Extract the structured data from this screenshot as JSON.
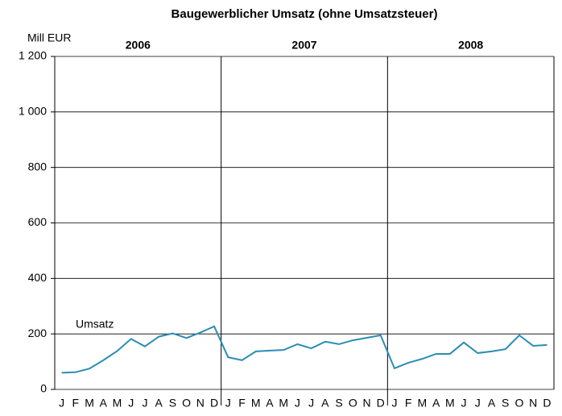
{
  "chart_data": {
    "type": "line",
    "title": "Baugewerblicher Umsatz (ohne Umsatzsteuer)",
    "y_label": "Mill EUR",
    "annotation": "Umsatz",
    "years": [
      "2006",
      "2007",
      "2008"
    ],
    "categories": [
      "J",
      "F",
      "M",
      "A",
      "M",
      "J",
      "J",
      "A",
      "S",
      "O",
      "N",
      "D",
      "J",
      "F",
      "M",
      "A",
      "M",
      "J",
      "J",
      "A",
      "S",
      "O",
      "N",
      "D",
      "J",
      "F",
      "M",
      "A",
      "M",
      "J",
      "J",
      "A",
      "S",
      "O",
      "N",
      "D"
    ],
    "series": [
      {
        "name": "Umsatz",
        "color": "#2b8db3",
        "values": [
          60,
          62,
          75,
          105,
          138,
          182,
          155,
          190,
          202,
          185,
          205,
          227,
          116,
          105,
          137,
          140,
          142,
          163,
          148,
          172,
          163,
          177,
          186,
          195,
          76,
          96,
          110,
          128,
          128,
          169,
          131,
          137,
          145,
          195,
          157,
          160
        ]
      }
    ],
    "ylim": [
      0,
      1200
    ],
    "yticks": [
      0,
      200,
      400,
      600,
      800,
      {
        "value": 1000,
        "label": "1 000"
      },
      {
        "value": 1200,
        "label": "1 200"
      }
    ],
    "grid": true
  }
}
